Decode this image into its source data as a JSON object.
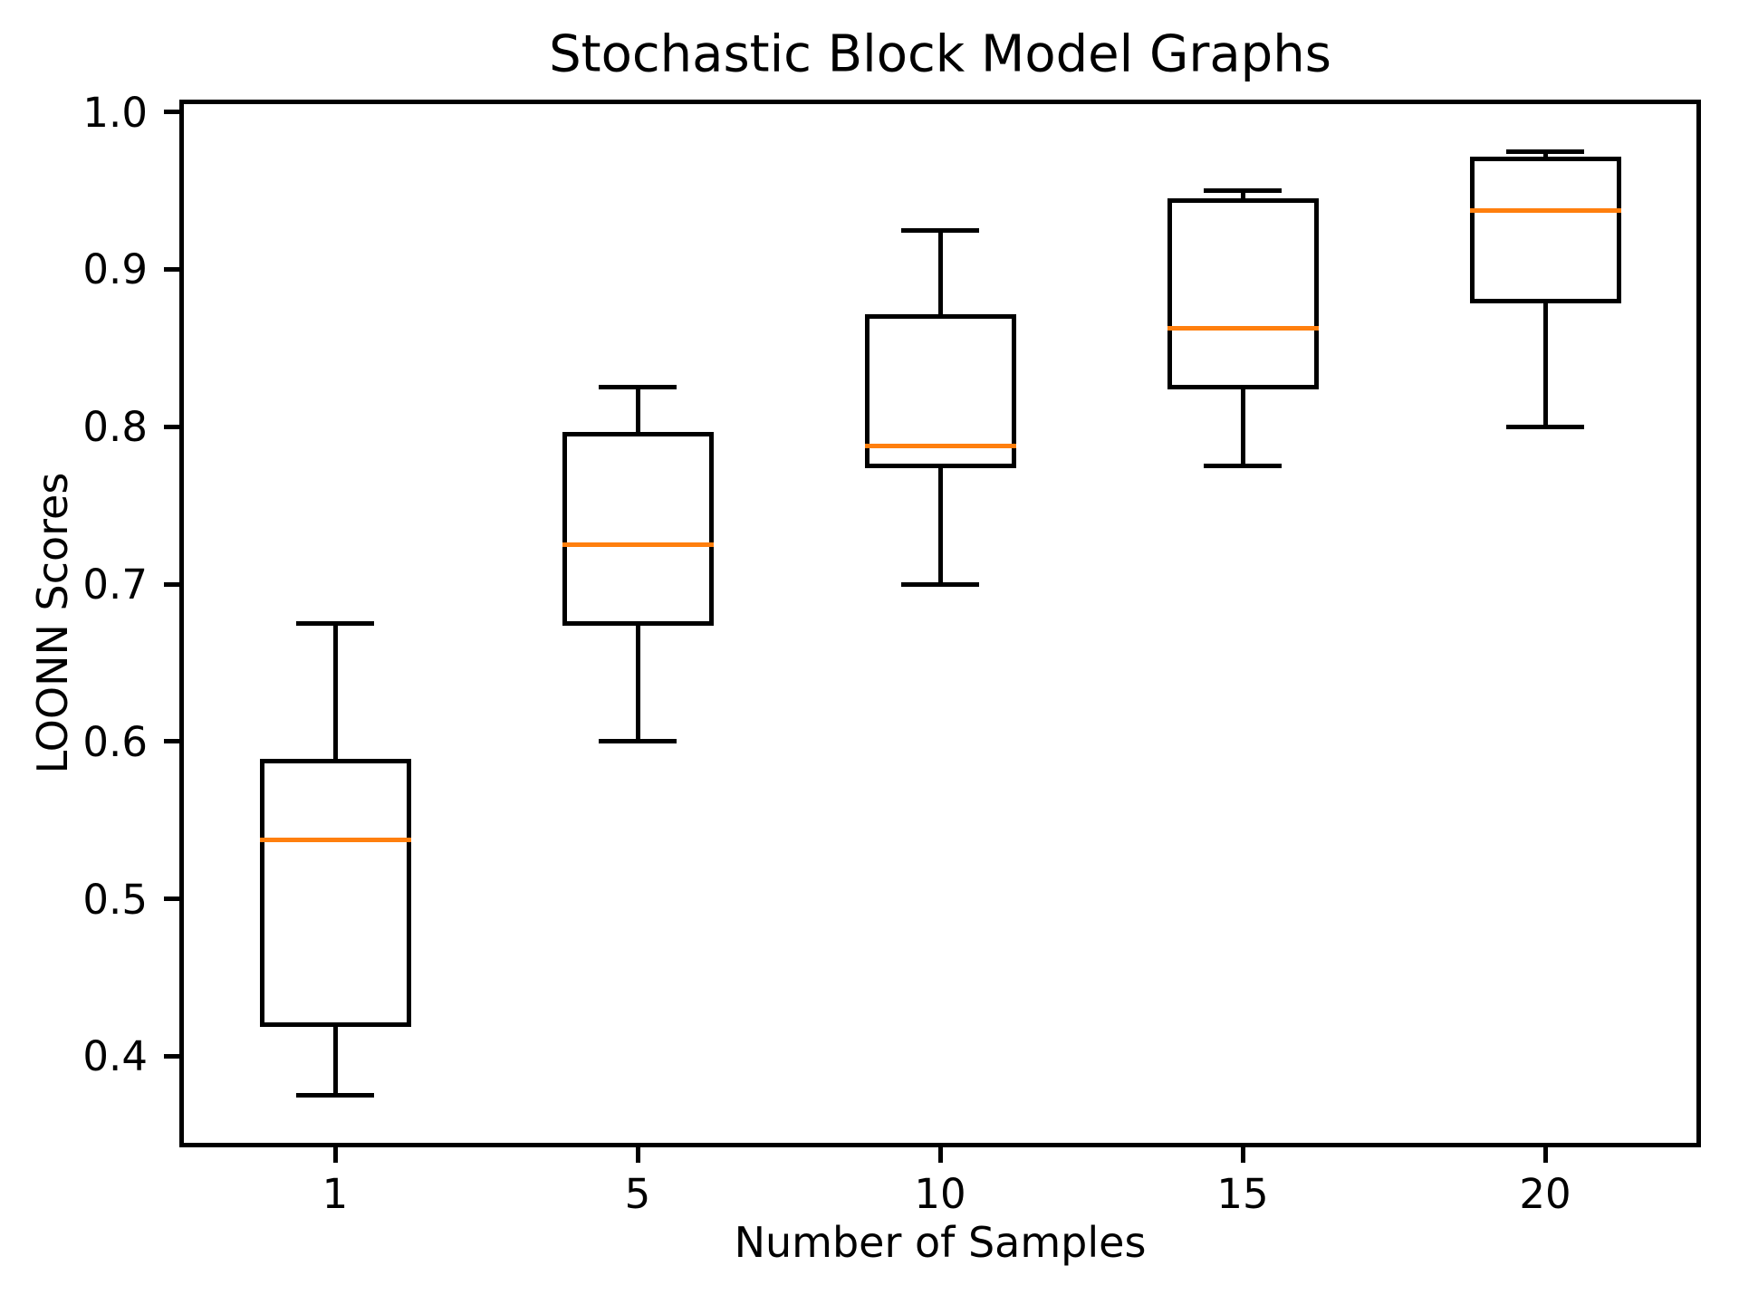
{
  "chart_data": {
    "type": "box",
    "title": "Stochastic Block Model Graphs",
    "xlabel": "Number of Samples",
    "ylabel": "LOONN Scores",
    "categories": [
      "1",
      "5",
      "10",
      "15",
      "20"
    ],
    "ylim": [
      0.345,
      1.005
    ],
    "yticks": [
      {
        "value": 1.0,
        "label": "1.0"
      },
      {
        "value": 0.9,
        "label": "0.9"
      },
      {
        "value": 0.8,
        "label": "0.8"
      },
      {
        "value": 0.7,
        "label": "0.7"
      },
      {
        "value": 0.6,
        "label": "0.6"
      },
      {
        "value": 0.5,
        "label": "0.5"
      },
      {
        "value": 0.4,
        "label": "0.4"
      }
    ],
    "grid": false,
    "legend_position": "none",
    "box_width_fraction": 0.5,
    "series": [
      {
        "category": "1",
        "whislo": 0.375,
        "q1": 0.42,
        "med": 0.5375,
        "q3": 0.5875,
        "whishi": 0.675
      },
      {
        "category": "5",
        "whislo": 0.6,
        "q1": 0.675,
        "med": 0.725,
        "q3": 0.795,
        "whishi": 0.825
      },
      {
        "category": "10",
        "whislo": 0.7,
        "q1": 0.775,
        "med": 0.7875,
        "q3": 0.87,
        "whishi": 0.925
      },
      {
        "category": "15",
        "whislo": 0.775,
        "q1": 0.825,
        "med": 0.8625,
        "q3": 0.944,
        "whishi": 0.95
      },
      {
        "category": "20",
        "whislo": 0.8,
        "q1": 0.88,
        "med": 0.9375,
        "q3": 0.97,
        "whishi": 0.975
      }
    ],
    "colors": {
      "median": "#ff7f0e",
      "line": "#000000",
      "background": "#ffffff"
    }
  }
}
